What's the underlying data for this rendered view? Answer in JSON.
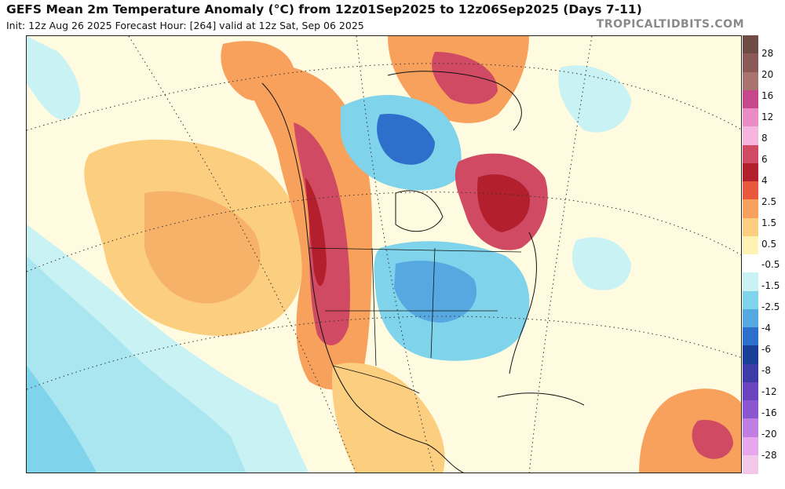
{
  "header": {
    "title": "GEFS Mean 2m Temperature Anomaly (°C) from 12z01Sep2025 to 12z06Sep2025 (Days 7-11)",
    "subtitle": "Init: 12z Aug 26 2025   Forecast Hour: [264]   valid at 12z Sat, Sep 06 2025",
    "brand": "TROPICALTIDBITS.COM"
  },
  "colorbar": {
    "labels": [
      "28",
      "20",
      "16",
      "12",
      "8",
      "6",
      "4",
      "2.5",
      "1.5",
      "0.5",
      "-0.5",
      "-1.5",
      "-2.5",
      "-4",
      "-6",
      "-8",
      "-12",
      "-16",
      "-20",
      "-28"
    ],
    "colors": [
      "#6e4c44",
      "#8c5a56",
      "#a9736f",
      "#c6478c",
      "#ea8cc6",
      "#f5b5de",
      "#cf4a62",
      "#b41f2d",
      "#e9573e",
      "#f7a15c",
      "#fbcf7f",
      "#fff2b3",
      "#ffffff",
      "#c8f2f4",
      "#7fd3ea",
      "#56a8e0",
      "#2e6fcb",
      "#1a3f98",
      "#3d3ba8",
      "#6a43bf",
      "#8a57d1",
      "#c07ee2",
      "#e7a7ed",
      "#f3c7e9"
    ]
  }
}
